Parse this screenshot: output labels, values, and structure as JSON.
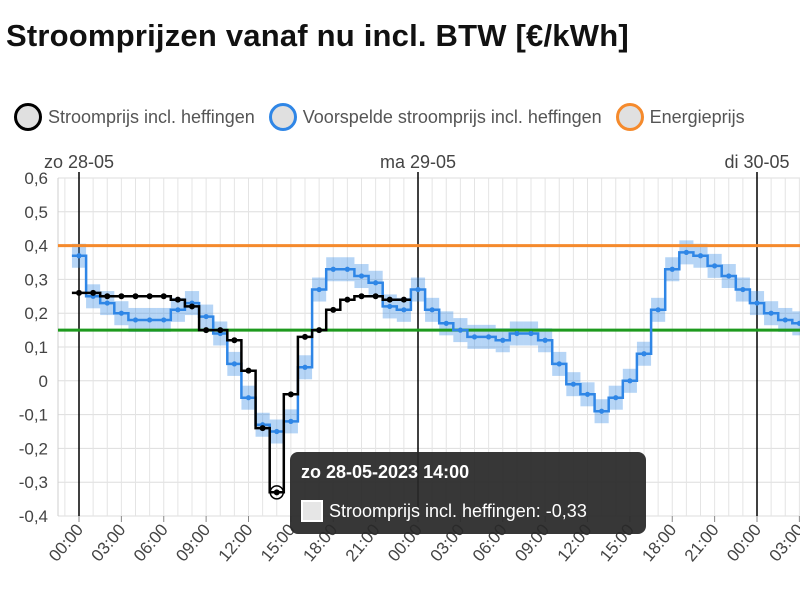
{
  "title": "Stroomprijzen vanaf nu incl. BTW [€/kWh]",
  "legend": [
    {
      "label": "Stroomprijs incl. heffingen",
      "color": "#000000"
    },
    {
      "label": "Voorspelde stroomprijs incl. heffingen",
      "color": "#2f86e6"
    },
    {
      "label": "Energieprijs",
      "color": "#f58a2c"
    }
  ],
  "tooltip": {
    "title": "zo 28-05-2023 14:00",
    "series": "Stroomprijs incl. heffingen",
    "value": "-0,33"
  },
  "chart_data": {
    "type": "line",
    "step": true,
    "title": "Stroomprijzen vanaf nu incl. BTW [€/kWh]",
    "xlabel": "",
    "ylabel": "",
    "ylim": [
      -0.4,
      0.6
    ],
    "y_ticks": [
      "-0,4",
      "-0,3",
      "-0,2",
      "-0,1",
      "0",
      "0,1",
      "0,2",
      "0,3",
      "0,4",
      "0,5",
      "0,6"
    ],
    "day_labels": [
      {
        "label": "zo 28-05",
        "hour": 0
      },
      {
        "label": "ma 29-05",
        "hour": 24
      },
      {
        "label": "di 30-05",
        "hour": 48
      }
    ],
    "x_ticks": [
      "00:00",
      "03:00",
      "06:00",
      "09:00",
      "12:00",
      "15:00",
      "18:00",
      "21:00",
      "00:00",
      "03:00",
      "06:00",
      "09:00",
      "12:00",
      "15:00",
      "18:00",
      "21:00",
      "00:00",
      "03:00"
    ],
    "x_unit": "hours since zo 28-05 00:00",
    "grid": true,
    "reference_lines": [
      {
        "color": "#f58a2c",
        "value": 0.4
      },
      {
        "color": "#1e9a1e",
        "value": 0.15
      }
    ],
    "series": [
      {
        "name": "Stroomprijs incl. heffingen",
        "color": "#000000",
        "start_hour": 0,
        "values": [
          0.26,
          0.26,
          0.25,
          0.25,
          0.25,
          0.25,
          0.25,
          0.24,
          0.22,
          0.15,
          0.15,
          0.12,
          0.03,
          -0.14,
          -0.33,
          -0.04,
          0.13,
          0.15,
          0.21,
          0.24,
          0.25,
          0.25,
          0.24,
          0.24
        ]
      },
      {
        "name": "Voorspelde stroomprijs incl. heffingen",
        "color": "#2f86e6",
        "start_hour": 0,
        "values": [
          0.37,
          0.25,
          0.23,
          0.2,
          0.18,
          0.18,
          0.18,
          0.21,
          0.23,
          0.19,
          0.14,
          0.05,
          -0.05,
          -0.13,
          -0.15,
          -0.12,
          0.04,
          0.27,
          0.33,
          0.33,
          0.31,
          0.29,
          0.22,
          0.21,
          0.27,
          0.21,
          0.17,
          0.15,
          0.13,
          0.13,
          0.12,
          0.14,
          0.14,
          0.12,
          0.05,
          -0.01,
          -0.04,
          -0.09,
          -0.05,
          0.0,
          0.08,
          0.21,
          0.33,
          0.38,
          0.37,
          0.34,
          0.31,
          0.27,
          0.23,
          0.2,
          0.18,
          0.17,
          0.15,
          0.13
        ]
      }
    ]
  }
}
